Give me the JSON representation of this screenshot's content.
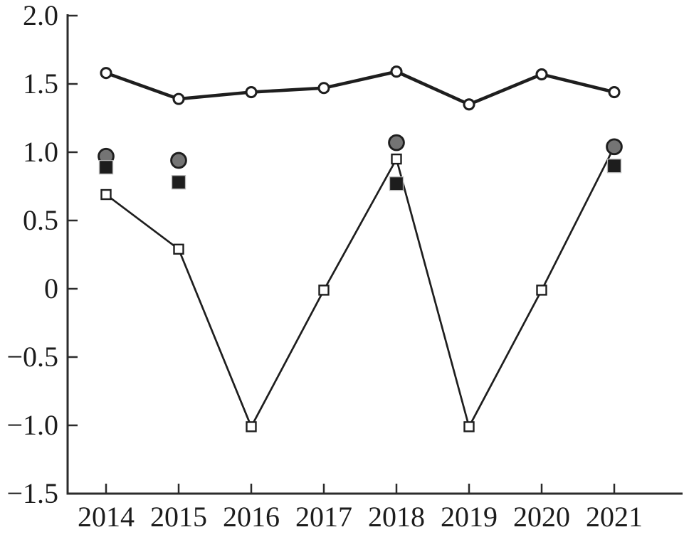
{
  "chart_data": {
    "type": "line",
    "title": "",
    "xlabel": "",
    "ylabel": "",
    "grid": false,
    "legend": "none",
    "x": [
      2014,
      2015,
      2016,
      2017,
      2018,
      2019,
      2020,
      2021
    ],
    "x_tick_labels": [
      "2014",
      "2015",
      "2016",
      "2017",
      "2018",
      "2019",
      "2020",
      "2021"
    ],
    "ylim": [
      -1.5,
      2.0
    ],
    "y_tick_step": 0.5,
    "y_tick_labels": [
      "2.0",
      "1.5",
      "1.0",
      "0.5",
      "0",
      "−0.5",
      "−1.0",
      "−1.5"
    ],
    "series": [
      {
        "name": "open-circle-line",
        "type": "line",
        "marker": "open-circle",
        "x": [
          2014,
          2015,
          2016,
          2017,
          2018,
          2019,
          2020,
          2021
        ],
        "values": [
          1.58,
          1.39,
          1.44,
          1.47,
          1.59,
          1.35,
          1.57,
          1.44
        ]
      },
      {
        "name": "open-square-line",
        "type": "line",
        "marker": "open-square",
        "x": [
          2014,
          2015,
          2016,
          2017,
          2018,
          2019,
          2020,
          2021
        ],
        "values": [
          0.69,
          0.29,
          -1.01,
          -0.01,
          0.95,
          -1.01,
          -0.01,
          1.04
        ]
      },
      {
        "name": "gray-circle-scatter",
        "type": "scatter",
        "marker": "filled-gray-circle",
        "x": [
          2014,
          2015,
          2018,
          2021
        ],
        "values": [
          0.97,
          0.94,
          1.07,
          1.04
        ]
      },
      {
        "name": "black-square-scatter",
        "type": "scatter",
        "marker": "filled-black-square",
        "x": [
          2014,
          2015,
          2018,
          2021
        ],
        "values": [
          0.89,
          0.78,
          0.77,
          0.9
        ]
      }
    ],
    "colors": {
      "background": "#ffffff",
      "ink": "#1e1e1e",
      "axis": "#2b2b2b",
      "open_marker_fill": "#ffffff",
      "gray_marker_fill": "#747474",
      "black_marker_fill": "#1d1d1d",
      "black_marker_halo": "#b9b9b9"
    }
  }
}
